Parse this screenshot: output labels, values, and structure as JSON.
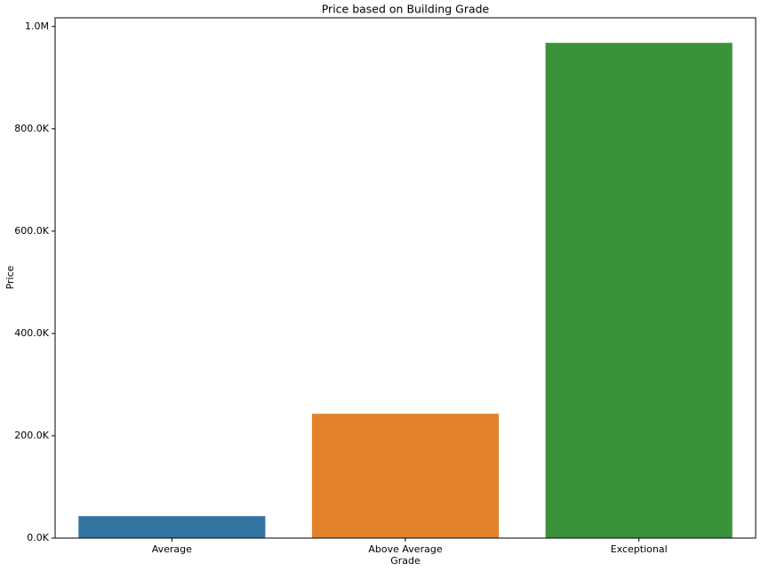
{
  "chart_data": {
    "type": "bar",
    "title": "Price based on Building Grade",
    "x_label": "Grade",
    "y_label": "Price",
    "categories": [
      "Average",
      "Above Average",
      "Exceptional"
    ],
    "values": [
      43000,
      243000,
      968000
    ],
    "colors": [
      "#3274a1",
      "#e1812c",
      "#3a923a"
    ],
    "ylim": [
      0,
      1017000
    ],
    "yticks": [
      {
        "value": 0,
        "label": "0.0K"
      },
      {
        "value": 200000,
        "label": "200.0K"
      },
      {
        "value": 400000,
        "label": "400.0K"
      },
      {
        "value": 600000,
        "label": "600.0K"
      },
      {
        "value": 800000,
        "label": "800.0K"
      },
      {
        "value": 1000000,
        "label": "1.0M"
      }
    ],
    "grid": false
  }
}
